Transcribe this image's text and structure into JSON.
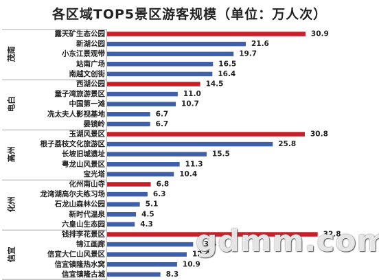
{
  "chart_data": {
    "type": "bar",
    "orientation": "horizontal",
    "title": "各区域TOP5景区游客规模（单位：万人次）",
    "groups": [
      {
        "name": "茂南",
        "items": [
          {
            "label": "露天矿生态公园",
            "value": 30.9,
            "highlight": true
          },
          {
            "label": "新湖公园",
            "value": 21.6
          },
          {
            "label": "小东江景观带",
            "value": 19.7
          },
          {
            "label": "站南广场",
            "value": 16.5
          },
          {
            "label": "南越文创街",
            "value": 16.4
          }
        ]
      },
      {
        "name": "电白",
        "items": [
          {
            "label": "西湖公园",
            "value": 14.5,
            "highlight": true
          },
          {
            "label": "童子湾旅游景区",
            "value": 11.0
          },
          {
            "label": "中国第一滩",
            "value": 10.7
          },
          {
            "label": "冼太夫人影视基地",
            "value": 6.7
          },
          {
            "label": "晏镜岭",
            "value": 6.7
          }
        ]
      },
      {
        "name": "高州",
        "items": [
          {
            "label": "玉湖风景区",
            "value": 30.8,
            "highlight": true
          },
          {
            "label": "根子荔枝文化旅游区",
            "value": 25.8
          },
          {
            "label": "长坡旧城遗址",
            "value": 15.5
          },
          {
            "label": "粤龙山风景区",
            "value": 11.3
          },
          {
            "label": "宝光塔",
            "value": 10.4
          }
        ]
      },
      {
        "name": "化州",
        "items": [
          {
            "label": "化州南山寺",
            "value": 6.8,
            "highlight": true
          },
          {
            "label": "龙湾湖高尔夫练习场",
            "value": 6.3
          },
          {
            "label": "石龙山森林公园",
            "value": 5.1
          },
          {
            "label": "新时代温泉",
            "value": 4.5
          },
          {
            "label": "六皇山生态园",
            "value": 4.3
          }
        ]
      },
      {
        "name": "信宜",
        "items": [
          {
            "label": "钱排李花景区",
            "value": 32.8,
            "highlight": true
          },
          {
            "label": "锦江画廊",
            "value": 13.4
          },
          {
            "label": "信宜大仁山风景区",
            "value": 12.4
          },
          {
            "label": "信宜镇隆热水窝",
            "value": 10.9
          },
          {
            "label": "信宜镇隆古城",
            "value": 8.3
          }
        ]
      }
    ],
    "colors": {
      "highlight": "#c8202a",
      "normal": "#3f5fa8"
    }
  },
  "watermark": "gdmm.com"
}
